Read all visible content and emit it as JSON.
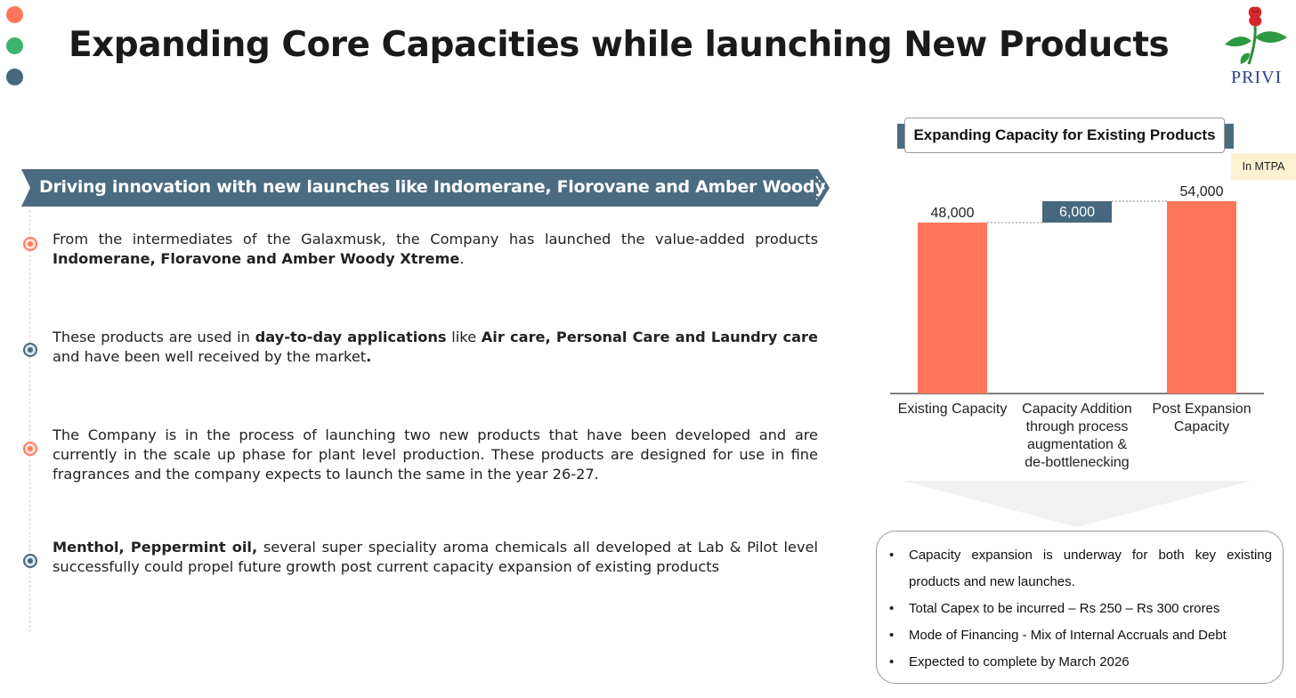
{
  "title": "Expanding Core Capacities while launching New Products",
  "logo": {
    "text": "PRIVI"
  },
  "colors": {
    "accent_orange": "#FF765A",
    "accent_green": "#3DB36E",
    "accent_blue": "#46687E",
    "banner": "#4A6B80",
    "unit_bg": "#FDF1D4"
  },
  "banner": {
    "text": "Driving innovation with new launches like Indomerane, Florovane and Amber Woody Xtreme"
  },
  "points": [
    {
      "marker": "orange",
      "segments": [
        {
          "t": "From the intermediates of the Galaxmusk, the Company has launched the value-added products ",
          "b": false
        },
        {
          "t": "Indomerane, Floravone and Amber Woody Xtreme",
          "b": true
        },
        {
          "t": ".",
          "b": false
        }
      ]
    },
    {
      "marker": "blue",
      "segments": [
        {
          "t": "These products are used in ",
          "b": false
        },
        {
          "t": "day-to-day applications",
          "b": true
        },
        {
          "t": " like ",
          "b": false
        },
        {
          "t": "Air care, Personal Care and Laundry care",
          "b": true
        },
        {
          "t": " and have been well received by the market",
          "b": false
        },
        {
          "t": ".",
          "b": true
        }
      ]
    },
    {
      "marker": "orange",
      "segments": [
        {
          "t": "The Company is in the process of launching two new products that have been developed and are currently in the scale up phase for plant level production. These products are designed for use in fine fragrances and the company expects to launch the same in the year 26-27.",
          "b": false
        }
      ]
    },
    {
      "marker": "blue",
      "segments": [
        {
          "t": "Menthol, Peppermint oil,",
          "b": true
        },
        {
          "t": " several super speciality aroma chemicals all developed at Lab & Pilot level successfully could propel future growth post current capacity expansion of existing products",
          "b": false
        }
      ]
    }
  ],
  "chart_header": "Expanding Capacity for Existing Products",
  "unit_label": "In MTPA",
  "chart_data": {
    "type": "bar",
    "subtype": "waterfall",
    "categories": [
      "Existing Capacity",
      "Capacity Addition through process augmentation & de-bottlenecking",
      "Post Expansion Capacity"
    ],
    "category_lines": [
      [
        "Existing Capacity"
      ],
      [
        "Capacity Addition",
        "through process",
        "augmentation &",
        "de-bottlenecking"
      ],
      [
        "Post Expansion",
        "Capacity"
      ]
    ],
    "values": [
      48000,
      6000,
      54000
    ],
    "value_labels": [
      "48,000",
      "6,000",
      "54,000"
    ],
    "bar_kinds": [
      "total",
      "increment",
      "total"
    ],
    "colors": {
      "total": "#FF765A",
      "increment": "#46687E"
    },
    "ylim": [
      0,
      54000
    ],
    "grid": false,
    "legend": "none"
  },
  "summary": {
    "bullet_char": "•",
    "items": [
      "Capacity expansion is underway for both key existing products and new launches.",
      "Total Capex to be incurred – Rs 250 – Rs 300 crores",
      "Mode of Financing  - Mix of Internal Accruals and Debt",
      "Expected to complete by March 2026"
    ]
  }
}
